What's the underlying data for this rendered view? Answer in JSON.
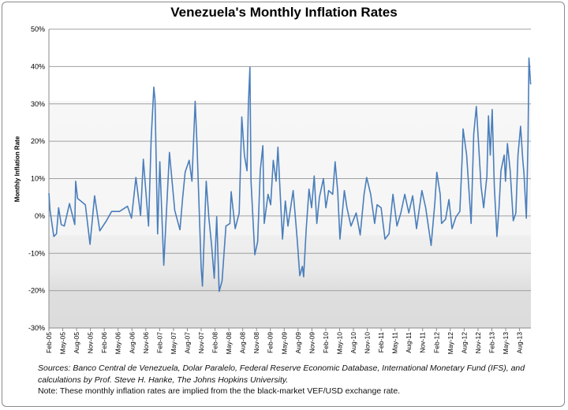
{
  "chart_data": {
    "type": "line",
    "title": "Venezuela's Monthly Inflation Rates",
    "xlabel": "",
    "ylabel": "Monthly Inflation Rate",
    "ylim": [
      -30,
      50
    ],
    "yticks": [
      "-30%",
      "-20%",
      "-10%",
      "0%",
      "10%",
      "20%",
      "30%",
      "40%",
      "50%"
    ],
    "ytick_values": [
      -30,
      -20,
      -10,
      0,
      10,
      20,
      30,
      40,
      50
    ],
    "xlim": [
      "2005-02-01",
      "2013-10-15"
    ],
    "xtick_labels": [
      "Feb-05",
      "May-05",
      "Aug-05",
      "Nov-05",
      "Feb-06",
      "May-06",
      "Aug-06",
      "Nov-06",
      "Feb-07",
      "May-07",
      "Aug-07",
      "Nov-07",
      "Feb-08",
      "May-08",
      "Aug-08",
      "Nov-08",
      "Feb-09",
      "May-09",
      "Aug-09",
      "Nov-09",
      "Feb-10",
      "May-10",
      "Aug-10",
      "Nov-10",
      "Feb-11",
      "May-11",
      "Aug-11",
      "Nov-11",
      "Feb-12",
      "May-12",
      "Aug-12",
      "Nov-12",
      "Feb-13",
      "May-13",
      "Aug-13"
    ],
    "grid": true,
    "legend": "none",
    "line_color": "#4a7ebb",
    "series": [
      {
        "x": [
          "2005-02-01",
          "2005-02-08",
          "2005-03-03",
          "2005-03-20",
          "2005-04-04",
          "2005-04-21",
          "2005-05-11",
          "2005-06-15",
          "2005-07-19",
          "2005-07-25",
          "2005-08-07",
          "2005-09-28",
          "2005-10-28",
          "2005-11-28",
          "2006-01-02",
          "2006-02-15",
          "2006-03-19",
          "2006-05-10",
          "2006-07-02",
          "2006-07-28",
          "2006-08-27",
          "2006-09-27",
          "2006-10-15",
          "2006-11-19",
          "2006-12-06",
          "2006-12-23",
          "2007-01-01",
          "2007-01-18",
          "2007-02-02",
          "2007-02-28",
          "2007-04-05",
          "2007-05-09",
          "2007-06-13",
          "2007-07-01",
          "2007-07-17",
          "2007-08-13",
          "2007-09-01",
          "2007-09-22",
          "2007-10-04",
          "2007-11-01",
          "2007-11-09",
          "2007-12-04",
          "2007-12-21",
          "2008-01-08",
          "2008-01-26",
          "2008-02-12",
          "2008-02-28",
          "2008-03-17",
          "2008-04-12",
          "2008-05-08",
          "2008-05-16",
          "2008-06-12",
          "2008-07-08",
          "2008-07-25",
          "2008-08-12",
          "2008-08-29",
          "2008-09-08",
          "2008-09-18",
          "2008-09-25",
          "2008-10-20",
          "2008-11-08",
          "2008-11-25",
          "2008-12-12",
          "2008-12-21",
          "2009-01-16",
          "2009-02-03",
          "2009-02-20",
          "2009-03-08",
          "2009-03-20",
          "2009-04-11",
          "2009-04-20",
          "2009-05-08",
          "2009-05-25",
          "2009-06-29",
          "2009-07-25",
          "2009-08-12",
          "2009-08-29",
          "2009-09-07",
          "2009-09-24",
          "2009-10-12",
          "2009-10-29",
          "2009-11-16",
          "2009-12-03",
          "2009-12-20",
          "2010-01-16",
          "2010-02-02",
          "2010-02-20",
          "2010-03-16",
          "2010-04-02",
          "2010-04-19",
          "2010-05-03",
          "2010-06-02",
          "2010-06-19",
          "2010-07-15",
          "2010-08-19",
          "2010-09-15",
          "2010-10-10",
          "2010-10-27",
          "2010-11-23",
          "2010-12-19",
          "2011-01-05",
          "2011-02-01",
          "2011-02-26",
          "2011-03-22",
          "2011-04-18",
          "2011-05-14",
          "2011-06-09",
          "2011-07-05",
          "2011-08-01",
          "2011-08-26",
          "2011-09-21",
          "2011-10-26",
          "2011-11-21",
          "2011-12-26",
          "2012-01-21",
          "2012-02-03",
          "2012-02-25",
          "2012-03-04",
          "2012-03-30",
          "2012-04-22",
          "2012-05-12",
          "2012-06-08",
          "2012-07-03",
          "2012-07-17",
          "2012-07-24",
          "2012-08-17",
          "2012-09-04",
          "2012-09-16",
          "2012-10-03",
          "2012-10-20",
          "2012-11-04",
          "2012-11-21",
          "2012-12-08",
          "2012-12-29",
          "2013-01-09",
          "2013-01-21",
          "2013-02-03",
          "2013-02-17",
          "2013-03-04",
          "2013-03-18",
          "2013-03-30",
          "2013-04-21",
          "2013-04-30",
          "2013-05-12",
          "2013-05-30",
          "2013-06-20",
          "2013-07-07",
          "2013-07-21",
          "2013-08-08",
          "2013-08-22",
          "2013-08-30",
          "2013-09-15",
          "2013-09-26",
          "2013-10-02",
          "2013-10-13"
        ],
        "y": [
          6.1,
          1.5,
          -5.5,
          -4.8,
          2.2,
          -2.3,
          -2.7,
          3.3,
          -2.3,
          9.3,
          4.7,
          3.0,
          -7.6,
          5.4,
          -4.0,
          -1.3,
          1.2,
          1.2,
          2.6,
          -0.6,
          10.3,
          0.1,
          15.2,
          -2.7,
          20.5,
          34.5,
          31.0,
          -4.8,
          14.5,
          -13.2,
          17.0,
          1.5,
          -3.7,
          5.0,
          11.7,
          14.9,
          9.3,
          30.7,
          19.1,
          -13.9,
          -18.8,
          9.3,
          -0.6,
          -7.6,
          -16.7,
          -0.2,
          -20.2,
          -17.4,
          -2.7,
          -2.0,
          6.5,
          -3.4,
          0.8,
          26.5,
          16.3,
          12.1,
          30.3,
          39.8,
          9.3,
          -10.4,
          -6.9,
          12.1,
          18.8,
          -2.0,
          5.8,
          3.0,
          14.9,
          9.3,
          18.4,
          0.8,
          -6.2,
          4.0,
          -2.7,
          6.8,
          -6.2,
          -16.0,
          -13.5,
          -16.3,
          -3.4,
          7.2,
          2.2,
          10.7,
          -2.0,
          5.0,
          10.0,
          2.2,
          6.8,
          5.8,
          14.5,
          6.5,
          -6.2,
          6.8,
          2.2,
          -2.7,
          0.8,
          -5.1,
          5.8,
          10.3,
          5.8,
          -2.0,
          3.0,
          2.2,
          -6.2,
          -4.8,
          5.8,
          -2.7,
          0.8,
          5.8,
          0.8,
          5.4,
          -3.4,
          6.8,
          2.2,
          -7.9,
          3.7,
          11.7,
          5.8,
          -2.0,
          -0.9,
          4.4,
          -3.4,
          -0.2,
          1.2,
          14.9,
          23.3,
          16.3,
          5.8,
          -2.0,
          21.9,
          29.3,
          19.8,
          7.9,
          2.2,
          10.7,
          26.8,
          16.3,
          28.5,
          7.9,
          -5.5,
          2.2,
          12.1,
          16.3,
          9.3,
          19.4,
          12.1,
          -1.3,
          0.8,
          16.3,
          24.0,
          14.9,
          11.4,
          -0.6,
          19.8,
          42.3,
          35.2
        ]
      }
    ]
  },
  "footer": {
    "sources_line1": "Sources: Banco Central de Venezuela, Dolar Paralelo, Federal Reserve Economic Database, International Monetary Fund (IFS), and",
    "sources_line2": "calculations by Prof. Steve H. Hanke, The Johns Hopkins University.",
    "note": "Note: These monthly inflation rates are implied from the the black-market VEF/USD exchange rate."
  }
}
